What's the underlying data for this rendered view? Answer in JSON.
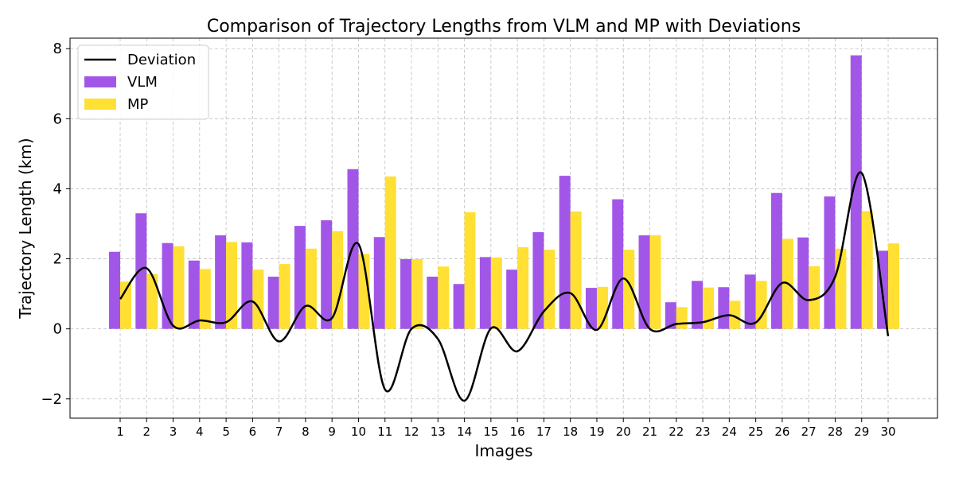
{
  "chart_data": {
    "type": "bar",
    "title": "Comparison of Trajectory Lengths from VLM and MP with Deviations",
    "xlabel": "Images",
    "ylabel": "Trajectory Length (km)",
    "categories": [
      "1",
      "2",
      "3",
      "4",
      "5",
      "6",
      "7",
      "8",
      "9",
      "10",
      "11",
      "12",
      "13",
      "14",
      "15",
      "16",
      "17",
      "18",
      "19",
      "20",
      "21",
      "22",
      "23",
      "24",
      "25",
      "26",
      "27",
      "28",
      "29",
      "30"
    ],
    "ylim": [
      -2.55,
      8.3
    ],
    "yticks": [
      -2,
      0,
      2,
      4,
      6,
      8
    ],
    "ytick_labels": [
      "−2",
      "0",
      "2",
      "4",
      "6",
      "8"
    ],
    "grid": true,
    "legend_position": "upper-left",
    "series": [
      {
        "name": "VLM",
        "type": "bar",
        "color": "#a256e8",
        "values": [
          2.2,
          3.3,
          2.45,
          1.95,
          2.67,
          2.47,
          1.49,
          2.94,
          3.1,
          4.56,
          2.62,
          1.99,
          1.49,
          1.28,
          2.05,
          1.69,
          2.76,
          4.37,
          1.17,
          3.7,
          2.67,
          0.76,
          1.37,
          1.19,
          1.55,
          3.88,
          2.61,
          3.78,
          7.81,
          2.23
        ]
      },
      {
        "name": "MP",
        "type": "bar",
        "color": "#ffe033",
        "values": [
          1.35,
          1.57,
          2.36,
          1.71,
          2.48,
          1.69,
          1.85,
          2.29,
          2.79,
          2.14,
          4.35,
          1.99,
          1.78,
          3.33,
          2.04,
          2.33,
          2.26,
          3.35,
          1.2,
          2.26,
          2.67,
          0.62,
          1.18,
          0.8,
          1.37,
          2.57,
          1.79,
          2.29,
          3.36,
          2.44
        ]
      },
      {
        "name": "Deviation",
        "type": "line",
        "color": "#000000",
        "values": [
          0.85,
          1.73,
          0.09,
          0.24,
          0.19,
          0.78,
          -0.36,
          0.65,
          0.31,
          2.42,
          -1.73,
          0.0,
          -0.29,
          -2.05,
          0.01,
          -0.64,
          0.5,
          1.02,
          -0.03,
          1.44,
          0.0,
          0.14,
          0.19,
          0.39,
          0.18,
          1.31,
          0.82,
          1.49,
          4.45,
          -0.21
        ]
      }
    ]
  }
}
